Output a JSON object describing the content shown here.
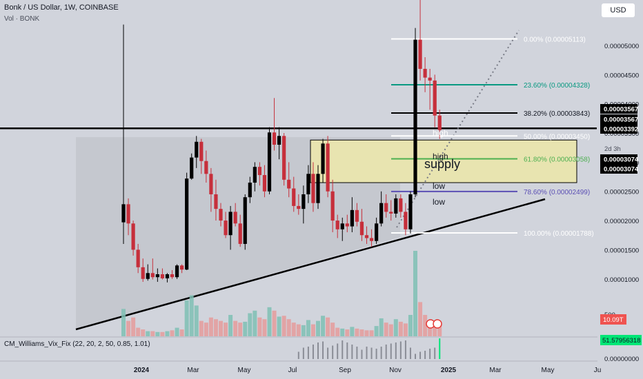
{
  "header": {
    "title": "Bonk / US Dollar, 1W, COINBASE",
    "volume": "Vol · BONK"
  },
  "currency_button": "USD",
  "indicator_label": "CM_Williams_Vix_Fix (22, 20, 2, 50, 0.85, 1.01)",
  "right_axis": {
    "ticks": [
      "0.00005000",
      "0.00004500",
      "0.00004000",
      "0.00003500",
      "0.00003000",
      "0.00002500",
      "0.00002000",
      "0.00001500",
      "0.00001000",
      "500"
    ],
    "price_boxes": [
      "0.00003567",
      "0.00003567",
      "0.00003392",
      "0.00003074",
      "0.00003074"
    ],
    "countdown": "2d 3h",
    "volume_tag": "10.09T",
    "vix_tag": "51.57956318",
    "vix_zero": "0.00000000",
    "colors": {
      "dark_box": "#000000",
      "volume_tag": "#ef5350",
      "vix_tag": "#00e676"
    }
  },
  "annotations": {
    "high_1": "high",
    "high_2": "high",
    "low_1": "low",
    "low_2": "low",
    "supply": "supply"
  },
  "colors": {
    "up": "#000000",
    "down": "#c62f3b",
    "vol_up": "#7fbfb4",
    "vol_down": "#e59b9b",
    "fib_teal": "#089981",
    "fib_green": "#4caf50",
    "fib_purple": "#5b4fb4",
    "supply_fill": "#e8e4b0",
    "triangle_fill": "#c3c6cd"
  },
  "chart_data": {
    "type": "candlestick",
    "x_axis_labels": [
      "2024",
      "Mar",
      "May",
      "Jul",
      "Sep",
      "Nov",
      "2025",
      "Mar",
      "May",
      "Ju"
    ],
    "y_scale": "linear",
    "y_range": [
      8.2e-06,
      5.78e-05
    ],
    "fib_levels": [
      {
        "label": "0.00% (0.00005113)",
        "value": 5.113e-05,
        "color": "#ffffff"
      },
      {
        "label": "23.60% (0.00004328)",
        "value": 4.328e-05,
        "color": "#089981"
      },
      {
        "label": "38.20% (0.00003843)",
        "value": 3.843e-05,
        "color": "#000000"
      },
      {
        "label": "50.00% (0.00003450)",
        "value": 3.45e-05,
        "color": "#ffffff"
      },
      {
        "label": "61.80% (0.00003058)",
        "value": 3.058e-05,
        "color": "#4caf50"
      },
      {
        "label": "78.60% (0.00002499)",
        "value": 2.499e-05,
        "color": "#5b4fb4"
      },
      {
        "label": "100.00% (0.00001788)",
        "value": 1.788e-05,
        "color": "#ffffff"
      }
    ],
    "supply_zone": [
      2.65e-05,
      3.38e-05
    ],
    "resistance": 3.58e-05,
    "candles": [
      {
        "o": 1.97e-05,
        "h": 5.36e-05,
        "l": 1.6e-05,
        "c": 2.28e-05
      },
      {
        "o": 2.28e-05,
        "h": 2.38e-05,
        "l": 1.75e-05,
        "c": 1.95e-05
      },
      {
        "o": 1.95e-05,
        "h": 2e-05,
        "l": 1.4e-05,
        "c": 1.5e-05
      },
      {
        "o": 1.5e-05,
        "h": 1.6e-05,
        "l": 1.1e-05,
        "c": 1.2e-05
      },
      {
        "o": 1.2e-05,
        "h": 1.35e-05,
        "l": 9.5e-06,
        "c": 1e-05
      },
      {
        "o": 1e-05,
        "h": 1.25e-05,
        "l": 9.7e-06,
        "c": 1.1e-05
      },
      {
        "o": 1.1e-05,
        "h": 1.35e-05,
        "l": 9.9e-06,
        "c": 1.03e-05
      },
      {
        "o": 1.03e-05,
        "h": 1.18e-05,
        "l": 9.5e-06,
        "c": 1.08e-05
      },
      {
        "o": 1.08e-05,
        "h": 1.18e-05,
        "l": 9.9e-06,
        "c": 1.01e-05
      },
      {
        "o": 1.01e-05,
        "h": 1.1e-05,
        "l": 9.4e-06,
        "c": 1.08e-05
      },
      {
        "o": 1.08e-05,
        "h": 1.15e-05,
        "l": 1e-05,
        "c": 1.03e-05
      },
      {
        "o": 1.03e-05,
        "h": 1.25e-05,
        "l": 1e-05,
        "c": 1.23e-05
      },
      {
        "o": 1.23e-05,
        "h": 1.25e-05,
        "l": 1.1e-05,
        "c": 1.16e-05
      },
      {
        "o": 1.16e-05,
        "h": 2.82e-05,
        "l": 1.15e-05,
        "c": 2.72e-05
      },
      {
        "o": 2.72e-05,
        "h": 3.15e-05,
        "l": 2.7e-05,
        "c": 3.08e-05
      },
      {
        "o": 3.08e-05,
        "h": 3.45e-05,
        "l": 2.9e-05,
        "c": 3.35e-05
      },
      {
        "o": 3.35e-05,
        "h": 3.4e-05,
        "l": 2.8e-05,
        "c": 3.02e-05
      },
      {
        "o": 3.02e-05,
        "h": 3.2e-05,
        "l": 2.65e-05,
        "c": 2.8e-05
      },
      {
        "o": 2.8e-05,
        "h": 2.9e-05,
        "l": 2.15e-05,
        "c": 2.45e-05
      },
      {
        "o": 2.45e-05,
        "h": 2.7e-05,
        "l": 2e-05,
        "c": 2.2e-05
      },
      {
        "o": 2.2e-05,
        "h": 2.3e-05,
        "l": 1.9e-05,
        "c": 2e-05
      },
      {
        "o": 2e-05,
        "h": 2.15e-05,
        "l": 1.7e-05,
        "c": 1.75e-05
      },
      {
        "o": 1.75e-05,
        "h": 2.25e-05,
        "l": 1.5e-05,
        "c": 2.15e-05
      },
      {
        "o": 2.15e-05,
        "h": 2.3e-05,
        "l": 1.9e-05,
        "c": 1.95e-05
      },
      {
        "o": 1.95e-05,
        "h": 2.1e-05,
        "l": 1.55e-05,
        "c": 1.6e-05
      },
      {
        "o": 1.6e-05,
        "h": 2.45e-05,
        "l": 1.5e-05,
        "c": 2.4e-05
      },
      {
        "o": 2.4e-05,
        "h": 2.75e-05,
        "l": 2.3e-05,
        "c": 2.65e-05
      },
      {
        "o": 2.65e-05,
        "h": 3e-05,
        "l": 2.5e-05,
        "c": 2.92e-05
      },
      {
        "o": 2.92e-05,
        "h": 3e-05,
        "l": 2.6e-05,
        "c": 2.78e-05
      },
      {
        "o": 2.78e-05,
        "h": 2.95e-05,
        "l": 2.4e-05,
        "c": 2.5e-05
      },
      {
        "o": 2.5e-05,
        "h": 3.6e-05,
        "l": 2.45e-05,
        "c": 3.51e-05
      },
      {
        "o": 3.51e-05,
        "h": 4.1e-05,
        "l": 3.2e-05,
        "c": 3.3e-05
      },
      {
        "o": 3.3e-05,
        "h": 3.6e-05,
        "l": 3.05e-05,
        "c": 3.45e-05
      },
      {
        "o": 3.45e-05,
        "h": 3.5e-05,
        "l": 2.6e-05,
        "c": 2.7e-05
      },
      {
        "o": 2.7e-05,
        "h": 3e-05,
        "l": 2.4e-05,
        "c": 2.55e-05
      },
      {
        "o": 2.55e-05,
        "h": 2.75e-05,
        "l": 2.15e-05,
        "c": 2.25e-05
      },
      {
        "o": 2.25e-05,
        "h": 2.45e-05,
        "l": 2.1e-05,
        "c": 2.2e-05
      },
      {
        "o": 2.2e-05,
        "h": 2.6e-05,
        "l": 1.95e-05,
        "c": 2.45e-05
      },
      {
        "o": 2.45e-05,
        "h": 2.95e-05,
        "l": 2.3e-05,
        "c": 2.8e-05
      },
      {
        "o": 2.8e-05,
        "h": 3e-05,
        "l": 2.15e-05,
        "c": 2.3e-05
      },
      {
        "o": 2.3e-05,
        "h": 2.95e-05,
        "l": 2.2e-05,
        "c": 2.8e-05
      },
      {
        "o": 2.8e-05,
        "h": 3.4e-05,
        "l": 2.65e-05,
        "c": 3.32e-05
      },
      {
        "o": 3.32e-05,
        "h": 3.45e-05,
        "l": 2.4e-05,
        "c": 2.5e-05
      },
      {
        "o": 2.5e-05,
        "h": 2.7e-05,
        "l": 1.8e-05,
        "c": 2e-05
      },
      {
        "o": 2e-05,
        "h": 2.1e-05,
        "l": 1.7e-05,
        "c": 1.85e-05
      },
      {
        "o": 1.85e-05,
        "h": 2.05e-05,
        "l": 1.65e-05,
        "c": 1.95e-05
      },
      {
        "o": 1.95e-05,
        "h": 2.1e-05,
        "l": 1.8e-05,
        "c": 1.9e-05
      },
      {
        "o": 1.9e-05,
        "h": 2.4e-05,
        "l": 1.8e-05,
        "c": 2.18e-05
      },
      {
        "o": 2.18e-05,
        "h": 2.3e-05,
        "l": 1.9e-05,
        "c": 1.98e-05
      },
      {
        "o": 1.98e-05,
        "h": 2.2e-05,
        "l": 1.65e-05,
        "c": 1.75e-05
      },
      {
        "o": 1.75e-05,
        "h": 1.9e-05,
        "l": 1.6e-05,
        "c": 1.7e-05
      },
      {
        "o": 1.7e-05,
        "h": 1.85e-05,
        "l": 1.55e-05,
        "c": 1.65e-05
      },
      {
        "o": 1.65e-05,
        "h": 2.05e-05,
        "l": 1.6e-05,
        "c": 1.95e-05
      },
      {
        "o": 1.95e-05,
        "h": 2.5e-05,
        "l": 1.9e-05,
        "c": 2.3e-05
      },
      {
        "o": 2.3e-05,
        "h": 2.45e-05,
        "l": 2.05e-05,
        "c": 2.15e-05
      },
      {
        "o": 2.15e-05,
        "h": 2.35e-05,
        "l": 2e-05,
        "c": 2.12e-05
      },
      {
        "o": 2.12e-05,
        "h": 2.45e-05,
        "l": 2.05e-05,
        "c": 2.38e-05
      },
      {
        "o": 2.38e-05,
        "h": 2.45e-05,
        "l": 2.05e-05,
        "c": 2.15e-05
      },
      {
        "o": 2.15e-05,
        "h": 2.3e-05,
        "l": 1.75e-05,
        "c": 1.85e-05
      },
      {
        "o": 1.85e-05,
        "h": 2.5e-05,
        "l": 1.78e-05,
        "c": 2.45e-05
      },
      {
        "o": 2.45e-05,
        "h": 5.3e-05,
        "l": 2.4e-05,
        "c": 5.1e-05
      },
      {
        "o": 5.1e-05,
        "h": 5.78e-05,
        "l": 4.4e-05,
        "c": 4.6e-05
      },
      {
        "o": 4.6e-05,
        "h": 4.8e-05,
        "l": 4.2e-05,
        "c": 4.45e-05
      },
      {
        "o": 4.45e-05,
        "h": 4.6e-05,
        "l": 3.9e-05,
        "c": 4.4e-05
      },
      {
        "o": 4.4e-05,
        "h": 4.5e-05,
        "l": 3.6e-05,
        "c": 3.8e-05
      },
      {
        "o": 3.8e-05,
        "h": 3.9e-05,
        "l": 3.4e-05,
        "c": 3.55e-05
      }
    ],
    "volume": [
      [
        0,
        0.32
      ],
      [
        1,
        0.18
      ],
      [
        2,
        0.22
      ],
      [
        3,
        0.1
      ],
      [
        4,
        0.08
      ],
      [
        5,
        0.06
      ],
      [
        6,
        0.06
      ],
      [
        7,
        0.05
      ],
      [
        8,
        0.05
      ],
      [
        9,
        0.06
      ],
      [
        10,
        0.07
      ],
      [
        11,
        0.1
      ],
      [
        12,
        0.08
      ],
      [
        13,
        0.42
      ],
      [
        14,
        0.48
      ],
      [
        15,
        0.36
      ],
      [
        16,
        0.18
      ],
      [
        17,
        0.16
      ],
      [
        18,
        0.22
      ],
      [
        19,
        0.2
      ],
      [
        20,
        0.18
      ],
      [
        21,
        0.16
      ],
      [
        22,
        0.25
      ],
      [
        23,
        0.18
      ],
      [
        24,
        0.16
      ],
      [
        25,
        0.17
      ],
      [
        26,
        0.27
      ],
      [
        27,
        0.3
      ],
      [
        28,
        0.22
      ],
      [
        29,
        0.2
      ],
      [
        30,
        0.34
      ],
      [
        31,
        0.3
      ],
      [
        32,
        0.23
      ],
      [
        33,
        0.24
      ],
      [
        34,
        0.2
      ],
      [
        35,
        0.16
      ],
      [
        36,
        0.14
      ],
      [
        37,
        0.13
      ],
      [
        38,
        0.19
      ],
      [
        39,
        0.14
      ],
      [
        40,
        0.18
      ],
      [
        41,
        0.24
      ],
      [
        42,
        0.22
      ],
      [
        43,
        0.16
      ],
      [
        44,
        0.1
      ],
      [
        45,
        0.09
      ],
      [
        46,
        0.08
      ],
      [
        47,
        0.11
      ],
      [
        48,
        0.09
      ],
      [
        49,
        0.08
      ],
      [
        50,
        0.07
      ],
      [
        51,
        0.07
      ],
      [
        52,
        0.12
      ],
      [
        53,
        0.21
      ],
      [
        54,
        0.16
      ],
      [
        55,
        0.14
      ],
      [
        56,
        0.2
      ],
      [
        57,
        0.17
      ],
      [
        58,
        0.15
      ],
      [
        59,
        0.25
      ],
      [
        60,
        1.0
      ],
      [
        61,
        0.4
      ],
      [
        62,
        0.25
      ],
      [
        63,
        0.18
      ],
      [
        64,
        0.16
      ],
      [
        65,
        0.14
      ]
    ],
    "vix_fix": [
      0,
      0,
      0,
      0,
      0,
      0,
      0,
      0,
      0,
      0,
      0,
      0,
      0,
      0,
      0,
      0,
      0,
      0,
      0,
      0,
      0,
      0,
      0,
      0,
      0,
      0,
      0,
      0,
      0,
      0,
      0,
      0,
      0,
      0,
      0,
      0,
      0.35,
      0.55,
      0.6,
      0.7,
      0.8,
      0.85,
      0.55,
      0.65,
      0.75,
      0.9,
      0.8,
      0.7,
      0.6,
      0.45,
      0.6,
      0.55,
      0.5,
      0.6,
      0.7,
      0.75,
      0.8,
      0.85,
      0.9,
      0.55,
      0.25,
      0.35,
      0.4,
      0.5,
      0.55,
      1.0
    ]
  }
}
